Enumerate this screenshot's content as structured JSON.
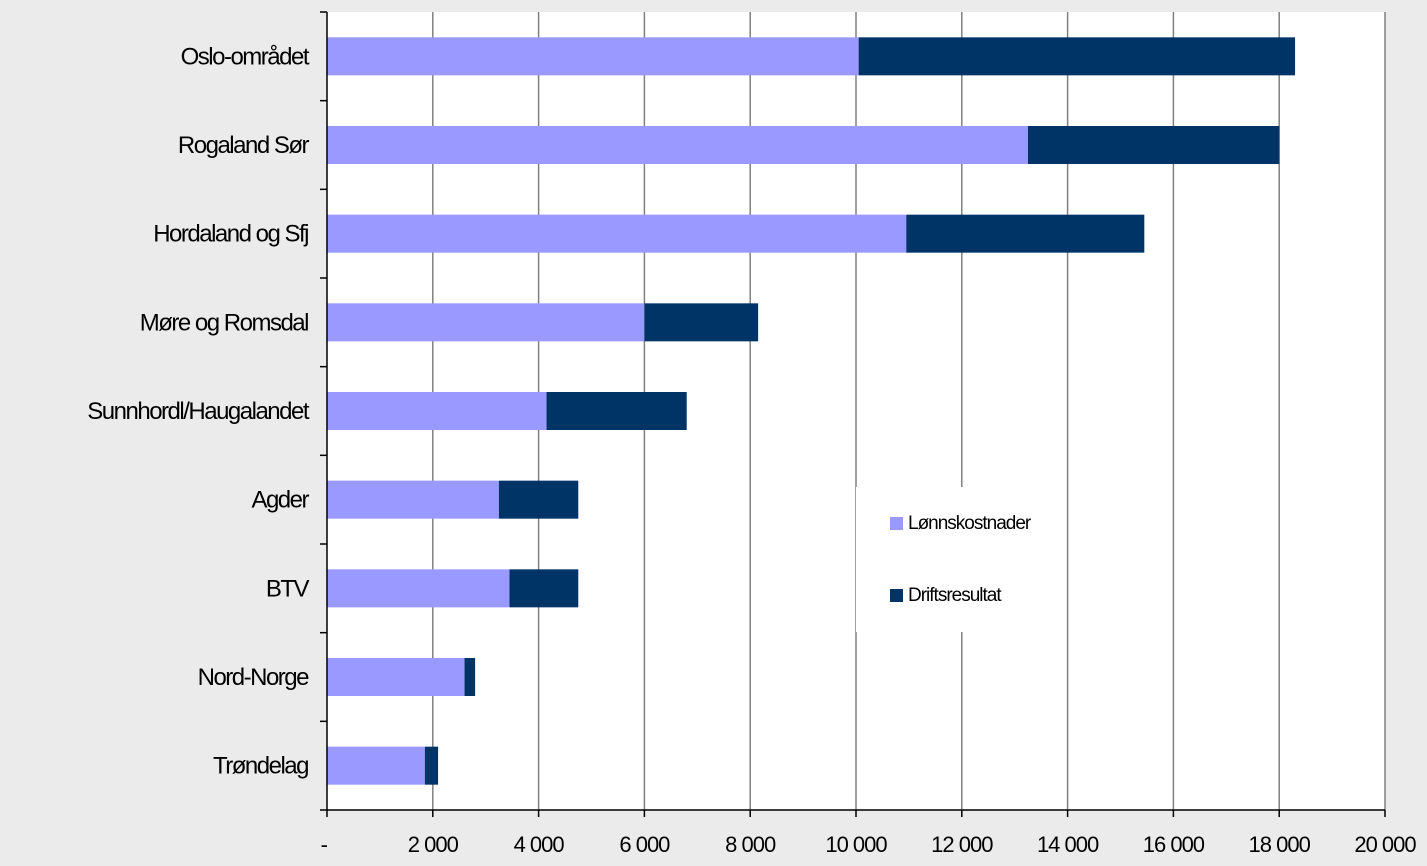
{
  "chart_data": {
    "type": "bar",
    "orientation": "horizontal",
    "stacked": true,
    "categories": [
      "Oslo-området",
      "Rogaland Sør",
      "Hordaland og Sfj",
      "Møre og Romsdal",
      "Sunnhordl/Haugalandet",
      "Agder",
      "BTV",
      "Nord-Norge",
      "Trøndelag"
    ],
    "series": [
      {
        "name": "Lønnskostnader",
        "color": "#9999ff",
        "values": [
          10050,
          13250,
          10950,
          6000,
          4150,
          3250,
          3450,
          2600,
          1850
        ]
      },
      {
        "name": "Driftsresultat",
        "color": "#003366",
        "values": [
          8250,
          4750,
          4500,
          2150,
          2650,
          1500,
          1300,
          200,
          250
        ]
      }
    ],
    "xlim": [
      0,
      20000
    ],
    "xticks": [
      0,
      2000,
      4000,
      6000,
      8000,
      10000,
      12000,
      14000,
      16000,
      18000,
      20000
    ],
    "xtick_labels": [
      "-",
      "2 000",
      "4 000",
      "6 000",
      "8 000",
      "10 000",
      "12 000",
      "14 000",
      "16 000",
      "18 000",
      "20 000"
    ],
    "title": "",
    "xlabel": "",
    "ylabel": "",
    "grid": "vertical",
    "legend_position": "center-right",
    "background": "#ebebeb",
    "plot_background": "#ffffff",
    "gridline_color": "#808080"
  }
}
